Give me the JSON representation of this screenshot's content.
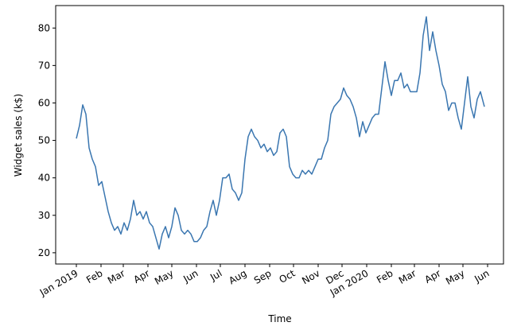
{
  "chart_data": {
    "type": "line",
    "x_label": "Time",
    "y_label": "Widget sales (k$)",
    "x": [
      0,
      4,
      8,
      12,
      16,
      20,
      24,
      28,
      32,
      36,
      40,
      44,
      48,
      52,
      56,
      60,
      64,
      68,
      72,
      76,
      80,
      84,
      88,
      92,
      96,
      100,
      104,
      108,
      112,
      116,
      120,
      124,
      128,
      132,
      136,
      140,
      144,
      148,
      152,
      156,
      160,
      164,
      168,
      172,
      176,
      180,
      184,
      188,
      192,
      196,
      200,
      204,
      208,
      212,
      216,
      220,
      224,
      228,
      232,
      236,
      240,
      244,
      248,
      252,
      256,
      260,
      264,
      268,
      272,
      276,
      280,
      284,
      288,
      292,
      296,
      300,
      304,
      308,
      312,
      316,
      320,
      324,
      328,
      332,
      336,
      340,
      344,
      348,
      352,
      356,
      360,
      364,
      368,
      372,
      376,
      380,
      384,
      388,
      392,
      396,
      400,
      404,
      408,
      412,
      416,
      420,
      424,
      428,
      432,
      436,
      440,
      444,
      448,
      452,
      456,
      460,
      464,
      468,
      472,
      476,
      480,
      484,
      488,
      492,
      496,
      500,
      504,
      508,
      513
    ],
    "series": [
      {
        "name": "Widget sales",
        "color": "#3a76b0",
        "values": [
          50.5,
          54,
          59.5,
          57,
          48,
          45,
          43,
          38,
          39,
          35,
          31,
          28,
          26,
          27,
          25,
          28,
          26,
          29,
          34,
          30,
          31,
          29,
          31,
          28,
          27,
          24,
          21,
          25,
          27,
          24,
          27,
          32,
          30,
          26,
          25,
          26,
          25,
          23,
          23,
          24,
          26,
          27,
          31,
          34,
          30,
          34,
          40,
          40,
          41,
          37,
          36,
          34,
          36,
          45,
          51,
          53,
          51,
          50,
          48,
          49,
          47,
          48,
          46,
          47,
          52,
          53,
          51,
          43,
          41,
          40,
          40,
          42,
          41,
          42,
          41,
          43,
          45,
          45,
          48,
          50,
          57,
          59,
          60,
          61,
          64,
          62,
          61,
          59,
          56,
          51,
          55,
          52,
          54,
          56,
          57,
          57,
          64,
          71,
          66,
          62,
          66,
          66,
          68,
          64,
          65,
          63,
          63,
          63,
          68,
          78,
          83,
          74,
          79,
          74,
          70,
          65,
          63,
          58,
          60,
          60,
          56,
          53,
          60,
          67,
          59,
          56,
          61,
          63,
          59
        ]
      }
    ],
    "xlim": [
      -26,
      537
    ],
    "ylim": [
      17,
      86
    ],
    "xticks": [
      {
        "value": 0,
        "label": "Jan 2019"
      },
      {
        "value": 31,
        "label": "Feb"
      },
      {
        "value": 59,
        "label": "Mar"
      },
      {
        "value": 90,
        "label": "Apr"
      },
      {
        "value": 120,
        "label": "May"
      },
      {
        "value": 151,
        "label": "Jun"
      },
      {
        "value": 181,
        "label": "Jul"
      },
      {
        "value": 212,
        "label": "Aug"
      },
      {
        "value": 243,
        "label": "Sep"
      },
      {
        "value": 273,
        "label": "Oct"
      },
      {
        "value": 304,
        "label": "Nov"
      },
      {
        "value": 334,
        "label": "Dec"
      },
      {
        "value": 365,
        "label": "Jan 2020"
      },
      {
        "value": 396,
        "label": "Feb"
      },
      {
        "value": 425,
        "label": "Mar"
      },
      {
        "value": 456,
        "label": "Apr"
      },
      {
        "value": 486,
        "label": "May"
      },
      {
        "value": 517,
        "label": "Jun"
      }
    ],
    "yticks": [
      20,
      30,
      40,
      50,
      60,
      70,
      80
    ],
    "grid": false
  }
}
